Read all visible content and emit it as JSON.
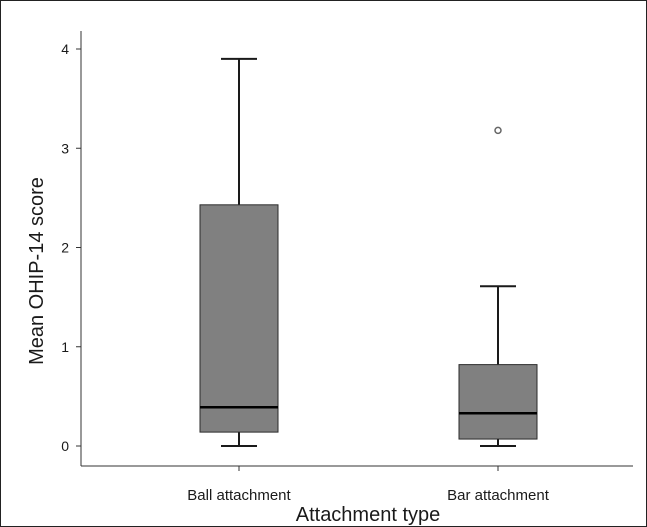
{
  "chart_data": {
    "type": "boxplot",
    "title": "",
    "xlabel": "Attachment type",
    "ylabel": "Mean OHIP-14 score",
    "ylim": [
      0,
      4
    ],
    "yticks": [
      "0",
      "1",
      "2",
      "3",
      "4"
    ],
    "categories": [
      "Ball attachment",
      "Bar attachment"
    ],
    "boxes": [
      {
        "category": "Ball attachment",
        "whisker_low": 0.0,
        "q1": 0.14,
        "median": 0.39,
        "q3": 2.43,
        "whisker_high": 3.9,
        "outliers": []
      },
      {
        "category": "Bar attachment",
        "whisker_low": 0.0,
        "q1": 0.07,
        "median": 0.33,
        "q3": 0.82,
        "whisker_high": 1.61,
        "outliers": [
          3.18
        ]
      }
    ],
    "box_color": "#808080",
    "grid": false,
    "legend": "none"
  }
}
